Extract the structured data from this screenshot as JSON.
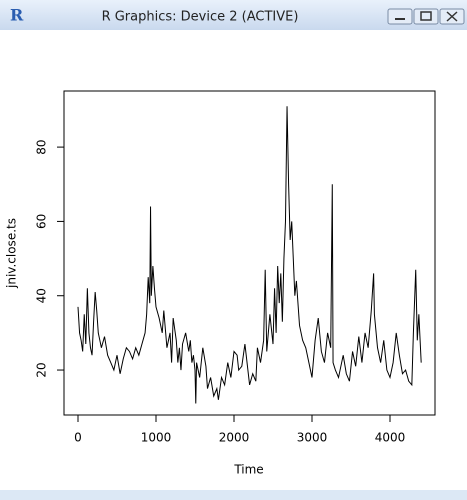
{
  "window_title": "R Graphics: Device 2 (ACTIVE)",
  "app_icon": "R",
  "chart_data": {
    "type": "line",
    "x_label": "Time",
    "y_label": "jniv.close.ts",
    "color": "#000000",
    "x": [
      0,
      20,
      40,
      60,
      80,
      100,
      120,
      140,
      160,
      180,
      200,
      220,
      240,
      260,
      280,
      300,
      340,
      380,
      420,
      460,
      500,
      540,
      580,
      620,
      660,
      700,
      740,
      780,
      820,
      860,
      880,
      900,
      920,
      930,
      940,
      960,
      980,
      1000,
      1040,
      1080,
      1100,
      1140,
      1180,
      1200,
      1220,
      1260,
      1280,
      1300,
      1320,
      1340,
      1380,
      1420,
      1440,
      1460,
      1480,
      1500,
      1510,
      1520,
      1560,
      1600,
      1640,
      1660,
      1700,
      1740,
      1780,
      1800,
      1840,
      1880,
      1920,
      1960,
      2000,
      2040,
      2060,
      2100,
      2140,
      2200,
      2240,
      2280,
      2300,
      2340,
      2380,
      2400,
      2420,
      2460,
      2500,
      2520,
      2540,
      2560,
      2580,
      2600,
      2620,
      2640,
      2660,
      2680,
      2700,
      2720,
      2740,
      2760,
      2780,
      2800,
      2840,
      2880,
      2920,
      2960,
      3000,
      3040,
      3080,
      3120,
      3160,
      3200,
      3240,
      3260,
      3270,
      3300,
      3340,
      3400,
      3440,
      3480,
      3520,
      3560,
      3600,
      3640,
      3680,
      3720,
      3760,
      3790,
      3800,
      3840,
      3880,
      3920,
      3960,
      4000,
      4040,
      4080,
      4120,
      4160,
      4200,
      4240,
      4280,
      4300,
      4330,
      4350,
      4370,
      4400
    ],
    "values": [
      37,
      30,
      28,
      25,
      35,
      27,
      42,
      30,
      26,
      24,
      33,
      41,
      36,
      30,
      28,
      26,
      29,
      24,
      22,
      20,
      24,
      19,
      23,
      26,
      25,
      23,
      26,
      24,
      27,
      30,
      35,
      45,
      38,
      64,
      40,
      48,
      42,
      37,
      34,
      30,
      36,
      26,
      30,
      22,
      34,
      28,
      22,
      26,
      20,
      27,
      30,
      25,
      28,
      22,
      24,
      20,
      11,
      22,
      18,
      26,
      21,
      15,
      18,
      13,
      15,
      12,
      18,
      16,
      22,
      18,
      25,
      24,
      20,
      21,
      27,
      16,
      19,
      17,
      26,
      22,
      28,
      47,
      25,
      35,
      27,
      42,
      30,
      48,
      38,
      46,
      33,
      50,
      60,
      91,
      70,
      55,
      60,
      50,
      40,
      44,
      32,
      28,
      26,
      22,
      18,
      28,
      34,
      25,
      22,
      30,
      26,
      70,
      22,
      20,
      18,
      24,
      19,
      17,
      25,
      21,
      29,
      22,
      30,
      26,
      36,
      46,
      35,
      26,
      22,
      28,
      20,
      18,
      22,
      30,
      24,
      19,
      20,
      17,
      16,
      30,
      47,
      28,
      35,
      22
    ],
    "xlim": [
      -179.5,
      4577
    ],
    "ylim": [
      7.9,
      95.1
    ],
    "xticks": [
      0,
      1000,
      2000,
      3000,
      4000
    ],
    "yticks": [
      20,
      40,
      60,
      80
    ]
  }
}
